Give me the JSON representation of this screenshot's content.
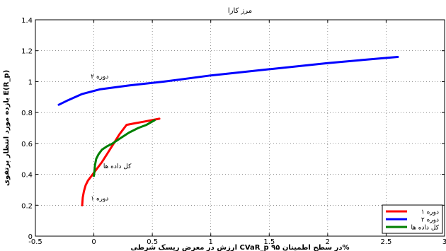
{
  "chart_data": {
    "type": "line",
    "title": "مرز کارا",
    "xlabel": "ارزش در معرض ریسک شرطی CVaR_p در سطح اطمینان ۹۵%",
    "ylabel": "بازده مورد انتظار پرتفوی E(R_p)",
    "xlim": [
      -0.5,
      3
    ],
    "ylim": [
      0,
      1.4
    ],
    "x_ticks": [
      "-0.5",
      "0",
      "0.5",
      "1",
      "1.5",
      "2",
      "2.5",
      "3"
    ],
    "y_ticks": [
      "0",
      "0.2",
      "0.4",
      "0.6",
      "0.8",
      "1",
      "1.2",
      "1.4"
    ],
    "grid": true,
    "legend_position": "bottom-right",
    "series": [
      {
        "name": "دوره ۱",
        "color": "#ff0000",
        "x": [
          -0.1,
          -0.095,
          -0.085,
          -0.07,
          -0.05,
          -0.02,
          0.02,
          0.07,
          0.12,
          0.17,
          0.22,
          0.28,
          0.35,
          0.42,
          0.49,
          0.56
        ],
        "y": [
          0.2,
          0.25,
          0.29,
          0.33,
          0.36,
          0.39,
          0.43,
          0.48,
          0.54,
          0.6,
          0.66,
          0.72,
          0.73,
          0.74,
          0.75,
          0.76
        ]
      },
      {
        "name": "دوره ۲",
        "color": "#0000ff",
        "x": [
          -0.3,
          -0.22,
          -0.1,
          0.05,
          0.3,
          0.6,
          1.0,
          1.5,
          2.0,
          2.3,
          2.6
        ],
        "y": [
          0.85,
          0.88,
          0.92,
          0.95,
          0.975,
          1.0,
          1.04,
          1.08,
          1.12,
          1.14,
          1.16
        ]
      },
      {
        "name": "کل داده ها",
        "color": "#008000",
        "x": [
          0.0,
          0.005,
          0.01,
          0.02,
          0.04,
          0.07,
          0.11,
          0.16,
          0.22,
          0.3,
          0.38,
          0.45,
          0.52
        ],
        "y": [
          0.39,
          0.42,
          0.46,
          0.5,
          0.53,
          0.56,
          0.58,
          0.6,
          0.63,
          0.67,
          0.7,
          0.72,
          0.75
        ]
      }
    ],
    "annotations": [
      {
        "text": "دوره ۲",
        "x": 0.05,
        "y": 1.02
      },
      {
        "text": "کل داده ها",
        "x": 0.2,
        "y": 0.44
      },
      {
        "text": "دوره ۱",
        "x": 0.05,
        "y": 0.23
      }
    ]
  }
}
